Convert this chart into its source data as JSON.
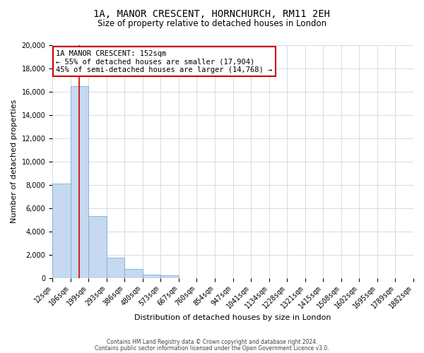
{
  "title": "1A, MANOR CRESCENT, HORNCHURCH, RM11 2EH",
  "subtitle": "Size of property relative to detached houses in London",
  "xlabel": "Distribution of detached houses by size in London",
  "ylabel": "Number of detached properties",
  "bar_values": [
    8100,
    16500,
    5300,
    1750,
    750,
    300,
    200,
    0,
    0,
    0,
    0,
    0,
    0,
    0,
    0,
    0,
    0,
    0,
    0,
    0
  ],
  "bin_labels": [
    "12sqm",
    "106sqm",
    "199sqm",
    "293sqm",
    "386sqm",
    "480sqm",
    "573sqm",
    "667sqm",
    "760sqm",
    "854sqm",
    "947sqm",
    "1041sqm",
    "1134sqm",
    "1228sqm",
    "1321sqm",
    "1415sqm",
    "1508sqm",
    "1602sqm",
    "1695sqm",
    "1789sqm",
    "1882sqm"
  ],
  "bar_color": "#c6d9f0",
  "bar_edge_color": "#7aadd4",
  "vline_color": "#cc0000",
  "ylim": [
    0,
    20000
  ],
  "yticks": [
    0,
    2000,
    4000,
    6000,
    8000,
    10000,
    12000,
    14000,
    16000,
    18000,
    20000
  ],
  "annotation_title": "1A MANOR CRESCENT: 152sqm",
  "annotation_line1": "← 55% of detached houses are smaller (17,904)",
  "annotation_line2": "45% of semi-detached houses are larger (14,768) →",
  "annotation_box_color": "#ffffff",
  "annotation_box_edge": "#cc0000",
  "footer1": "Contains HM Land Registry data © Crown copyright and database right 2024.",
  "footer2": "Contains public sector information licensed under the Open Government Licence v3.0.",
  "background_color": "#ffffff",
  "grid_color": "#d0dde8",
  "title_fontsize": 10,
  "subtitle_fontsize": 8.5,
  "xlabel_fontsize": 8,
  "ylabel_fontsize": 8,
  "tick_fontsize": 7,
  "annot_fontsize": 7.5,
  "footer_fontsize": 5.5
}
